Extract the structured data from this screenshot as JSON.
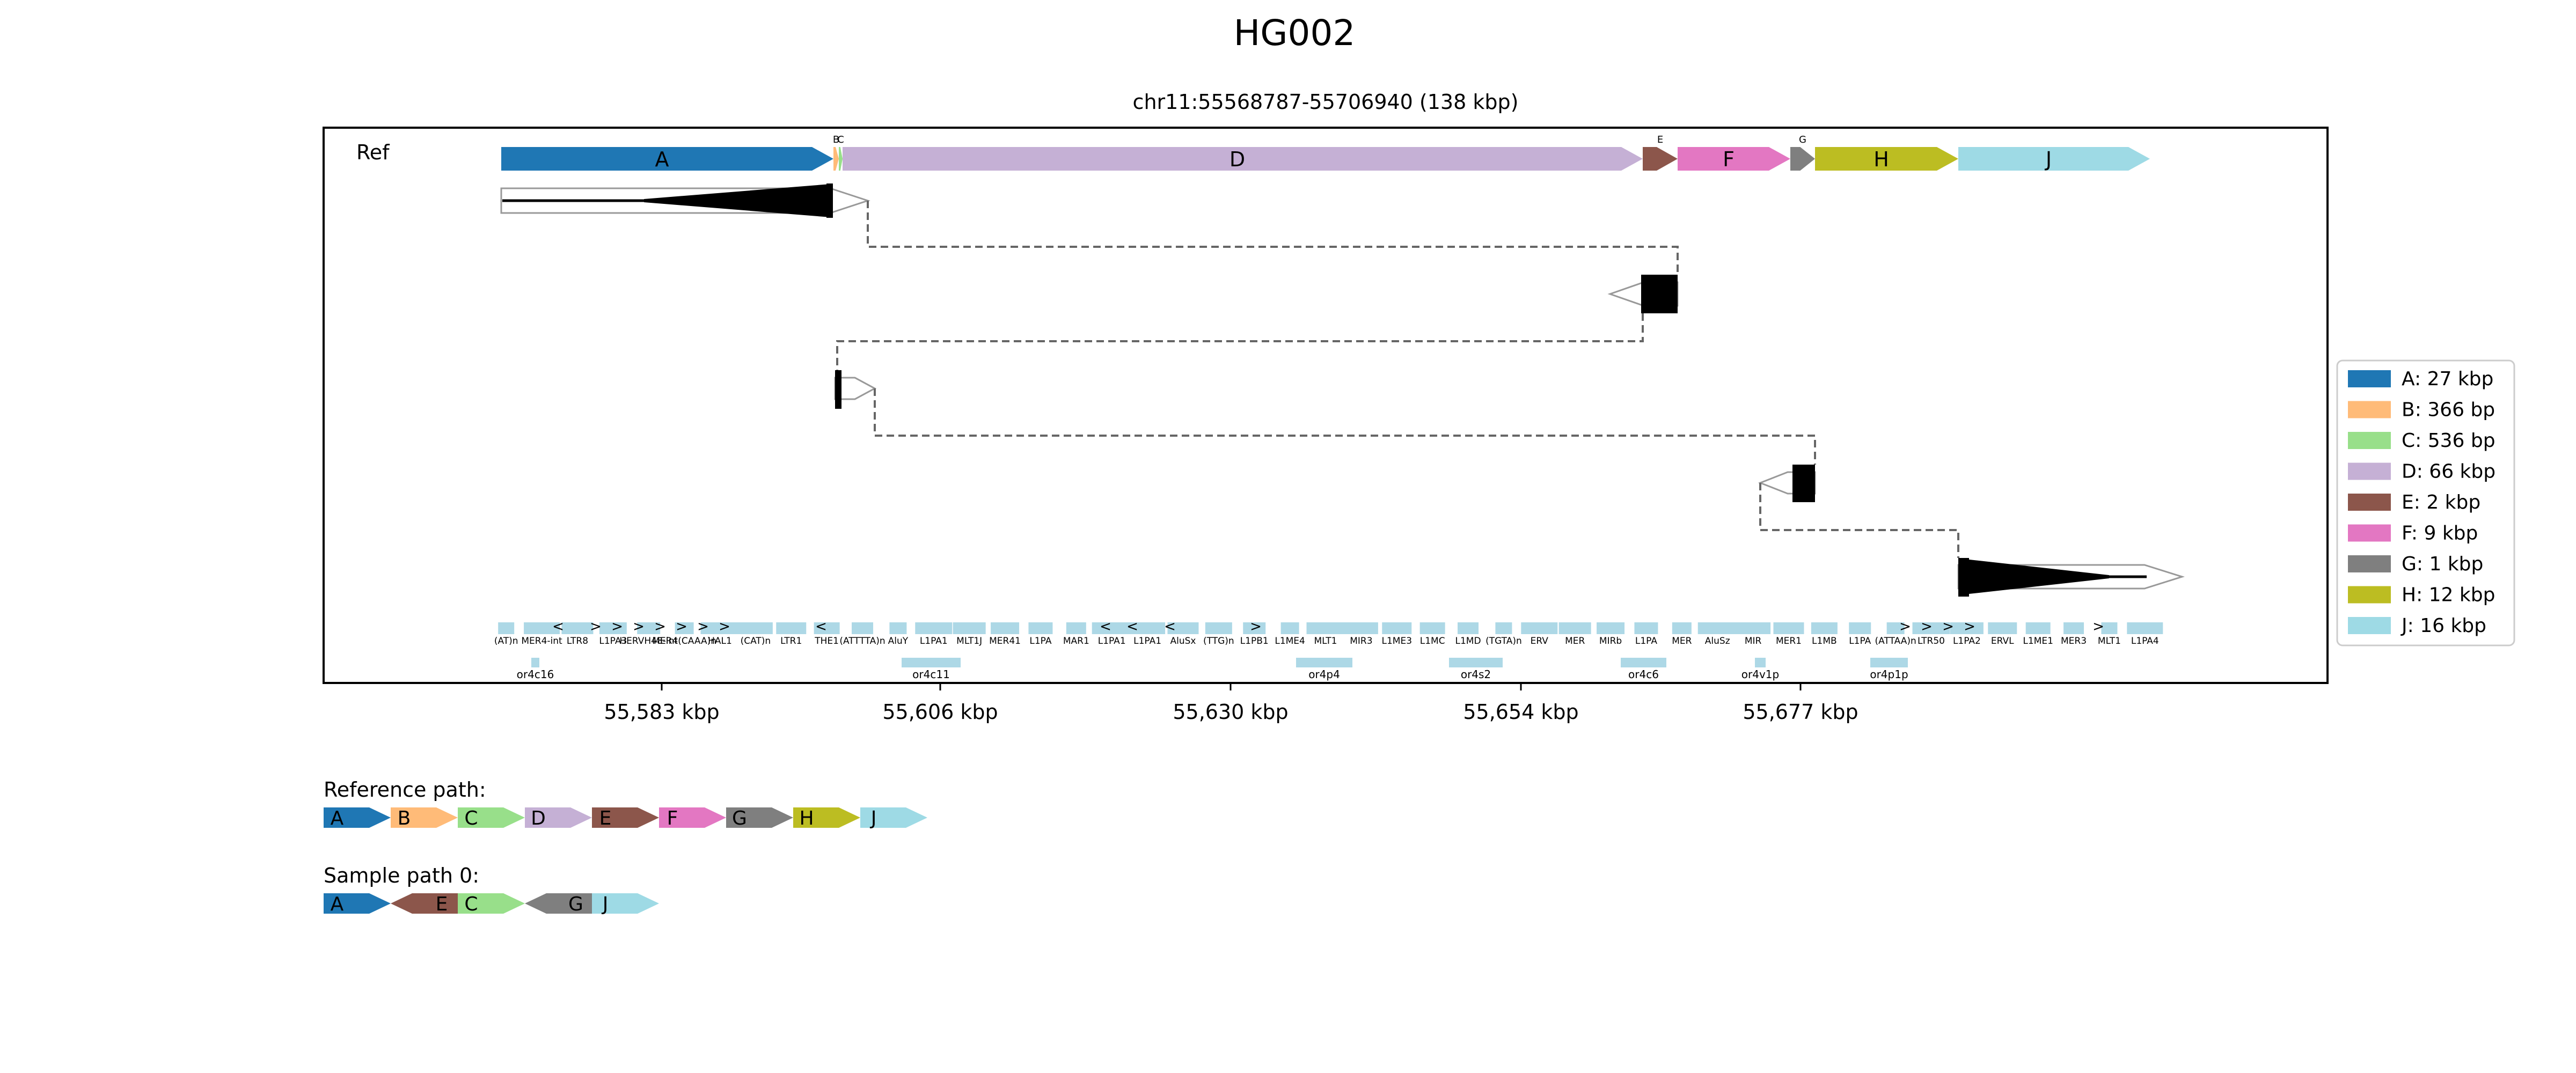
{
  "title": "HG002",
  "subtitle": "chr11:55568787-55706940 (138 kbp)",
  "ref_label": "Ref",
  "segments": [
    {
      "id": "A",
      "label": "A: 27 kbp",
      "color": "#1f77b4"
    },
    {
      "id": "B",
      "label": "B: 366 bp",
      "color": "#ffbb78"
    },
    {
      "id": "C",
      "label": "C: 536 bp",
      "color": "#98df8a"
    },
    {
      "id": "D",
      "label": "D: 66 kbp",
      "color": "#c5b0d5"
    },
    {
      "id": "E",
      "label": "E: 2 kbp",
      "color": "#8c564b"
    },
    {
      "id": "F",
      "label": "F: 9 kbp",
      "color": "#e377c2"
    },
    {
      "id": "G",
      "label": "G: 1 kbp",
      "color": "#7f7f7f"
    },
    {
      "id": "H",
      "label": "H: 12 kbp",
      "color": "#bcbd22"
    },
    {
      "id": "J",
      "label": "J: 16 kbp",
      "color": "#9edae5"
    }
  ],
  "x_axis": {
    "ticks": [
      "55,583 kbp",
      "55,606 kbp",
      "55,630 kbp",
      "55,654 kbp",
      "55,677 kbp"
    ]
  },
  "repeat_labels": [
    "(AT)n",
    "MER4-int",
    "LTR8",
    "L1PA3",
    "HERVH48-int",
    "MER4(CAAA)n",
    "HAL1",
    "(CAT)n",
    "LTR1",
    "THE1",
    "(ATTTTA)n",
    "AluY",
    "L1PA1",
    "MLT1J",
    "MER41",
    "L1PA",
    "MAR1",
    "L1PA1",
    "L1PA1",
    "AluSx",
    "(TTG)n",
    "L1PB1",
    "L1ME4",
    "MLT1",
    "MIR3",
    "L1ME3",
    "L1MC",
    "L1MD",
    "(TGTA)n",
    "ERV",
    "MER",
    "MIRb",
    "L1PA",
    "MER",
    "AluSz",
    "MIR",
    "MER1",
    "L1MB",
    "L1PA",
    "(ATTAA)n",
    "LTR50",
    "L1PA2",
    "ERVL",
    "L1ME1",
    "MER3",
    "MLT1",
    "L1PA4"
  ],
  "gene_labels": [
    "or4c16",
    "or4c11",
    "or4p4",
    "or4s2",
    "or4c6",
    "or4v1p",
    "or4p1p"
  ],
  "reference_path": {
    "title": "Reference path:",
    "items": [
      "A",
      "B",
      "C",
      "D",
      "E",
      "F",
      "G",
      "H",
      "J"
    ]
  },
  "sample_path": {
    "title": "Sample path 0:",
    "items": [
      {
        "id": "A",
        "dir": "+"
      },
      {
        "id": "E",
        "dir": "-"
      },
      {
        "id": "C",
        "dir": "+"
      },
      {
        "id": "G",
        "dir": "-"
      },
      {
        "id": "J",
        "dir": "+"
      }
    ]
  }
}
